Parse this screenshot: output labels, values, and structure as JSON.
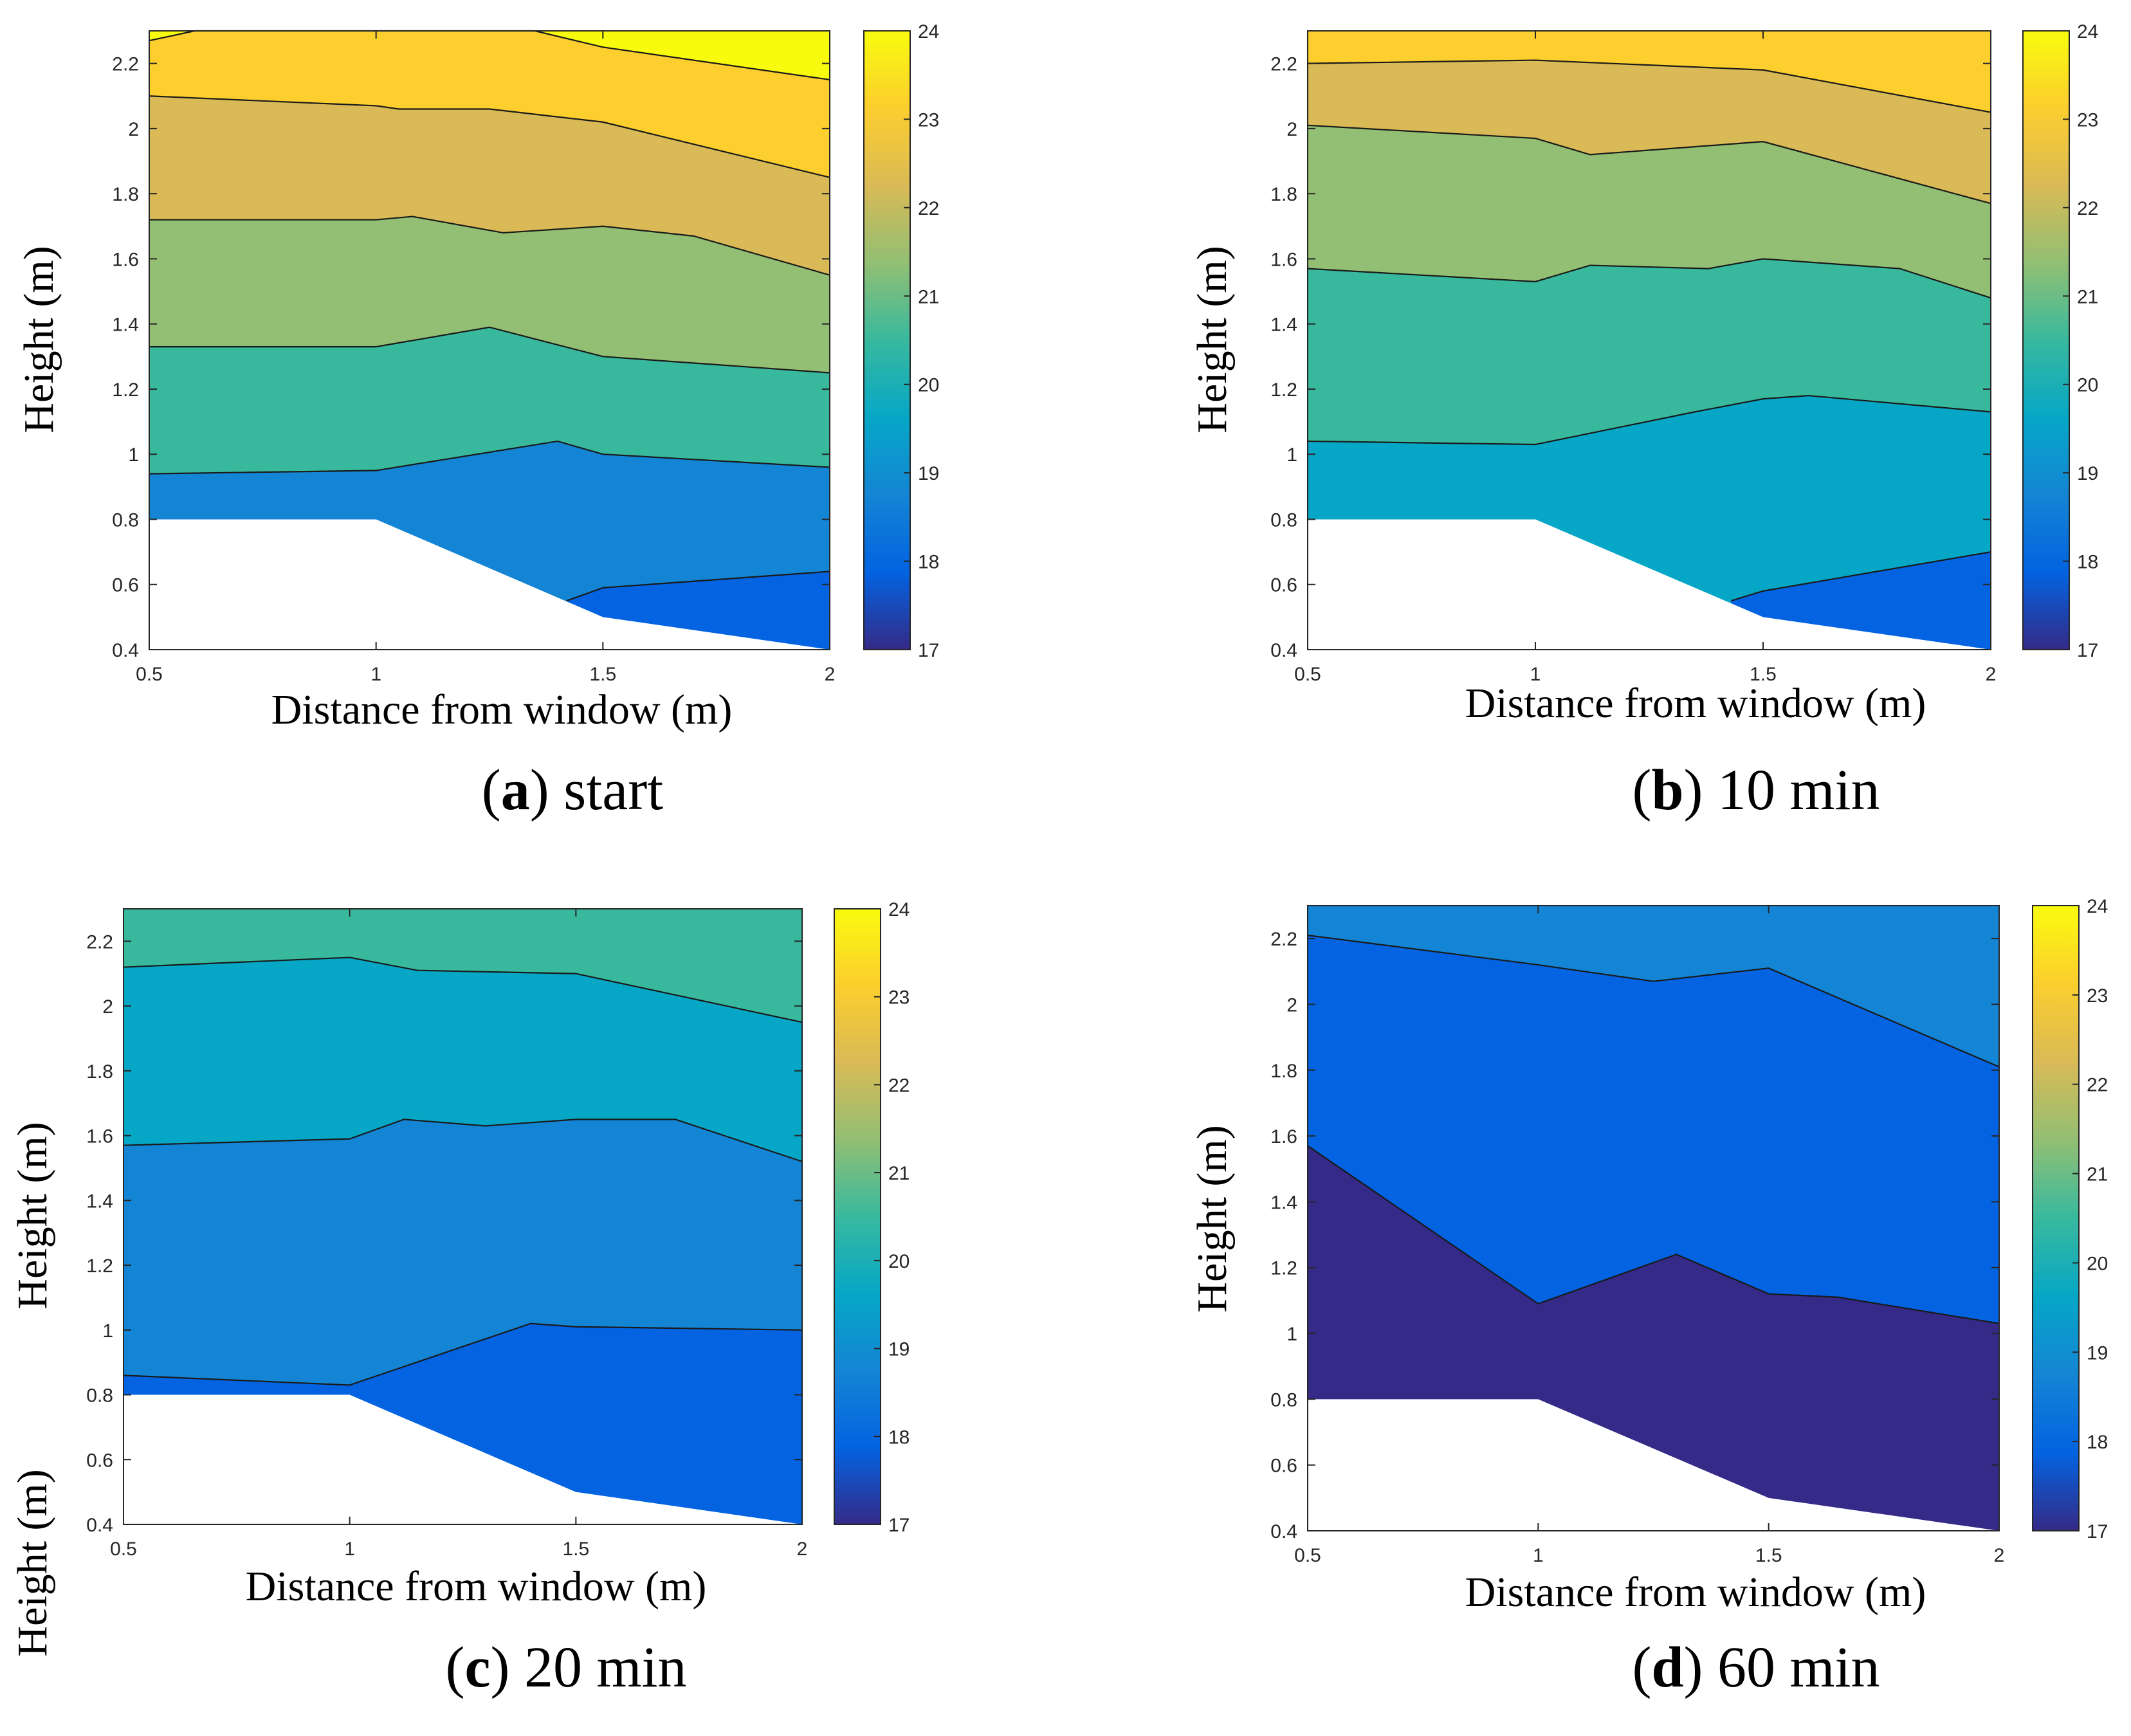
{
  "colors": {
    "parula": [
      "#352a87",
      "#0363e1",
      "#1485d4",
      "#06a7c6",
      "#38b99e",
      "#92bf73",
      "#d9ba56",
      "#fcce2e",
      "#f9fb0e"
    ],
    "levels": [
      17,
      18,
      19,
      20,
      21,
      22,
      23,
      24
    ]
  },
  "chart_data": [
    {
      "type": "contourf",
      "caption_letter": "a",
      "caption_text": " start",
      "xlabel": "Distance from window (m)",
      "ylabel": "Height (m)",
      "extra_ylabel": "",
      "xlim": [
        0.5,
        2
      ],
      "ylim": [
        0.4,
        2.3
      ],
      "xticks": [
        "0.5",
        "1",
        "1.5",
        "2"
      ],
      "yticks": [
        "0.4",
        "0.6",
        "0.8",
        "1",
        "1.2",
        "1.4",
        "1.6",
        "1.8",
        "2",
        "2.2"
      ],
      "colorbar_ticks": [
        "17",
        "18",
        "19",
        "20",
        "21",
        "22",
        "23",
        "24"
      ],
      "blank_region": [
        [
          0.5,
          0.4
        ],
        [
          0.5,
          0.8
        ],
        [
          1.0,
          0.8
        ],
        [
          1.5,
          0.5
        ],
        [
          2.0,
          0.4
        ]
      ],
      "bands": [
        {
          "color_index": 8,
          "upper": "top",
          "lower": [
            [
              0.5,
              2.27
            ],
            [
              0.6,
              2.3
            ],
            [
              1.35,
              2.3
            ],
            [
              1.5,
              2.25
            ],
            [
              2.0,
              2.15
            ]
          ]
        },
        {
          "color_index": 7,
          "upper": "prev",
          "lower": [
            [
              0.5,
              2.1
            ],
            [
              1.0,
              2.07
            ],
            [
              1.05,
              2.06
            ],
            [
              1.25,
              2.06
            ],
            [
              1.5,
              2.02
            ],
            [
              2.0,
              1.85
            ]
          ]
        },
        {
          "color_index": 6,
          "upper": "prev",
          "lower": [
            [
              0.5,
              1.72
            ],
            [
              1.0,
              1.72
            ],
            [
              1.08,
              1.73
            ],
            [
              1.28,
              1.68
            ],
            [
              1.5,
              1.7
            ],
            [
              1.7,
              1.67
            ],
            [
              2.0,
              1.55
            ]
          ]
        },
        {
          "color_index": 5,
          "upper": "prev",
          "lower": [
            [
              0.5,
              1.33
            ],
            [
              1.0,
              1.33
            ],
            [
              1.25,
              1.39
            ],
            [
              1.5,
              1.3
            ],
            [
              2.0,
              1.25
            ]
          ]
        },
        {
          "color_index": 4,
          "upper": "prev",
          "lower": [
            [
              0.5,
              0.94
            ],
            [
              1.0,
              0.95
            ],
            [
              1.4,
              1.04
            ],
            [
              1.5,
              1.0
            ],
            [
              2.0,
              0.96
            ]
          ]
        },
        {
          "color_index": 2,
          "upper": "prev",
          "lower": [
            [
              1.42,
              0.55
            ],
            [
              1.5,
              0.59
            ],
            [
              2.0,
              0.64
            ]
          ]
        },
        {
          "color_index": 1,
          "upper": "prev",
          "lower": "bottom"
        }
      ]
    },
    {
      "type": "contourf",
      "caption_letter": "b",
      "caption_text": " 10 min",
      "xlabel": "Distance from window (m)",
      "ylabel": "Height (m)",
      "extra_ylabel": "",
      "xlim": [
        0.5,
        2
      ],
      "ylim": [
        0.4,
        2.3
      ],
      "xticks": [
        "0.5",
        "1",
        "1.5",
        "2"
      ],
      "yticks": [
        "0.4",
        "0.6",
        "0.8",
        "1",
        "1.2",
        "1.4",
        "1.6",
        "1.8",
        "2",
        "2.2"
      ],
      "colorbar_ticks": [
        "17",
        "18",
        "19",
        "20",
        "21",
        "22",
        "23",
        "24"
      ],
      "blank_region": [
        [
          0.5,
          0.4
        ],
        [
          0.5,
          0.8
        ],
        [
          1.0,
          0.8
        ],
        [
          1.5,
          0.5
        ],
        [
          2.0,
          0.4
        ]
      ],
      "bands": [
        {
          "color_index": 7,
          "upper": "top",
          "lower": [
            [
              0.5,
              2.2
            ],
            [
              1.0,
              2.21
            ],
            [
              1.5,
              2.18
            ],
            [
              2.0,
              2.05
            ]
          ]
        },
        {
          "color_index": 6,
          "upper": "prev",
          "lower": [
            [
              0.5,
              2.01
            ],
            [
              1.0,
              1.97
            ],
            [
              1.12,
              1.92
            ],
            [
              1.5,
              1.96
            ],
            [
              2.0,
              1.77
            ]
          ]
        },
        {
          "color_index": 5,
          "upper": "prev",
          "lower": [
            [
              0.5,
              1.57
            ],
            [
              1.0,
              1.53
            ],
            [
              1.12,
              1.58
            ],
            [
              1.38,
              1.57
            ],
            [
              1.5,
              1.6
            ],
            [
              1.8,
              1.57
            ],
            [
              2.0,
              1.48
            ]
          ]
        },
        {
          "color_index": 4,
          "upper": "prev",
          "lower": [
            [
              0.5,
              1.04
            ],
            [
              1.0,
              1.03
            ],
            [
              1.35,
              1.13
            ],
            [
              1.5,
              1.17
            ],
            [
              1.6,
              1.18
            ],
            [
              2.0,
              1.13
            ]
          ]
        },
        {
          "color_index": 3,
          "upper": "prev",
          "lower": [
            [
              1.43,
              0.55
            ],
            [
              1.5,
              0.58
            ],
            [
              2.0,
              0.7
            ]
          ]
        },
        {
          "color_index": 1,
          "upper": "prev",
          "lower": "bottom"
        }
      ]
    },
    {
      "type": "contourf",
      "caption_letter": "c",
      "caption_text": " 20 min",
      "xlabel": "Distance from window (m)",
      "ylabel": "Height (m)",
      "extra_ylabel": "Height (m)",
      "xlim": [
        0.5,
        2
      ],
      "ylim": [
        0.4,
        2.3
      ],
      "xticks": [
        "0.5",
        "1",
        "1.5",
        "2"
      ],
      "yticks": [
        "0.4",
        "0.6",
        "0.8",
        "1",
        "1.2",
        "1.4",
        "1.6",
        "1.8",
        "2",
        "2.2"
      ],
      "colorbar_ticks": [
        "17",
        "18",
        "19",
        "20",
        "21",
        "22",
        "23",
        "24"
      ],
      "blank_region": [
        [
          0.5,
          0.4
        ],
        [
          0.5,
          0.8
        ],
        [
          1.0,
          0.8
        ],
        [
          1.5,
          0.5
        ],
        [
          2.0,
          0.4
        ]
      ],
      "bands": [
        {
          "color_index": 4,
          "upper": "top",
          "lower": [
            [
              0.5,
              2.12
            ],
            [
              1.0,
              2.15
            ],
            [
              1.15,
              2.11
            ],
            [
              1.5,
              2.1
            ],
            [
              2.0,
              1.95
            ]
          ]
        },
        {
          "color_index": 3,
          "upper": "prev",
          "lower": [
            [
              0.5,
              1.57
            ],
            [
              1.0,
              1.59
            ],
            [
              1.12,
              1.65
            ],
            [
              1.3,
              1.63
            ],
            [
              1.5,
              1.65
            ],
            [
              1.72,
              1.65
            ],
            [
              2.0,
              1.52
            ]
          ]
        },
        {
          "color_index": 2,
          "upper": "prev",
          "lower": [
            [
              0.5,
              0.86
            ],
            [
              1.0,
              0.83
            ],
            [
              1.4,
              1.02
            ],
            [
              1.5,
              1.01
            ],
            [
              2.0,
              1.0
            ]
          ]
        },
        {
          "color_index": 1,
          "upper": "prev",
          "lower": "bottom"
        }
      ]
    },
    {
      "type": "contourf",
      "caption_letter": "d",
      "caption_text": " 60 min",
      "xlabel": "Distance from window (m)",
      "ylabel": "Height (m)",
      "extra_ylabel": "",
      "xlim": [
        0.5,
        2
      ],
      "ylim": [
        0.4,
        2.3
      ],
      "xticks": [
        "0.5",
        "1",
        "1.5",
        "2"
      ],
      "yticks": [
        "0.4",
        "0.6",
        "0.8",
        "1",
        "1.2",
        "1.4",
        "1.6",
        "1.8",
        "2",
        "2.2"
      ],
      "colorbar_ticks": [
        "17",
        "18",
        "19",
        "20",
        "21",
        "22",
        "23",
        "24"
      ],
      "blank_region": [
        [
          0.5,
          0.4
        ],
        [
          0.5,
          0.8
        ],
        [
          1.0,
          0.8
        ],
        [
          1.5,
          0.5
        ],
        [
          2.0,
          0.4
        ]
      ],
      "bands": [
        {
          "color_index": 2,
          "upper": "top",
          "lower": [
            [
              0.5,
              2.21
            ],
            [
              1.0,
              2.12
            ],
            [
              1.25,
              2.07
            ],
            [
              1.5,
              2.11
            ],
            [
              2.0,
              1.81
            ]
          ]
        },
        {
          "color_index": 1,
          "upper": "prev",
          "lower": [
            [
              0.5,
              1.57
            ],
            [
              1.0,
              1.09
            ],
            [
              1.3,
              1.24
            ],
            [
              1.5,
              1.12
            ],
            [
              1.65,
              1.11
            ],
            [
              2.0,
              1.03
            ]
          ]
        },
        {
          "color_index": 0,
          "upper": "prev",
          "lower": "bottom"
        }
      ]
    }
  ]
}
